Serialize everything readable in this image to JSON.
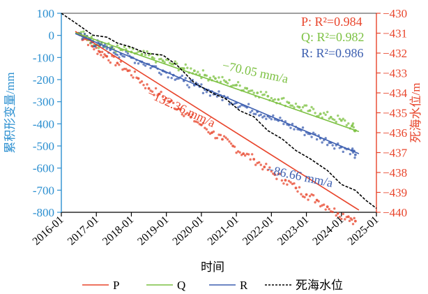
{
  "chart_data": {
    "type": "line",
    "xlabel": "时间",
    "ylabel_left": "累积形变量/mm",
    "ylabel_right": "死海水位/m",
    "ylim_left": [
      -800,
      100
    ],
    "yticks_left": [
      100,
      0,
      -100,
      -200,
      -300,
      -400,
      -500,
      -600,
      -700,
      -800
    ],
    "ylim_right": [
      -440,
      -430
    ],
    "yticks_right": [
      -430,
      -431,
      -432,
      -433,
      -434,
      -435,
      -436,
      -437,
      -438,
      -439,
      -440
    ],
    "xlim": [
      2016.0,
      2025.0
    ],
    "xticks": [
      {
        "value": 2016.0,
        "label": "2016-01"
      },
      {
        "value": 2017.0,
        "label": "2017-01"
      },
      {
        "value": 2018.0,
        "label": "2018-01"
      },
      {
        "value": 2019.0,
        "label": "2019-01"
      },
      {
        "value": 2020.0,
        "label": "2020-01"
      },
      {
        "value": 2021.0,
        "label": "2021-01"
      },
      {
        "value": 2022.0,
        "label": "2022-01"
      },
      {
        "value": 2023.0,
        "label": "2023-01"
      },
      {
        "value": 2024.0,
        "label": "2024-01"
      },
      {
        "value": 2025.0,
        "label": "2025-01"
      }
    ],
    "series": [
      {
        "name": "P",
        "axis": "left",
        "color": "#e8452c",
        "slope": -132.36,
        "fit": [
          [
            2016.4,
            18
          ],
          [
            2024.5,
            -790
          ]
        ],
        "scatter": [
          [
            2016.5,
            5
          ],
          [
            2016.7,
            -15
          ],
          [
            2016.9,
            -50
          ],
          [
            2017.1,
            -75
          ],
          [
            2017.3,
            -95
          ],
          [
            2017.6,
            -125
          ],
          [
            2017.9,
            -160
          ],
          [
            2018.2,
            -195
          ],
          [
            2018.5,
            -240
          ],
          [
            2018.8,
            -265
          ],
          [
            2019.1,
            -300
          ],
          [
            2019.4,
            -335
          ],
          [
            2019.7,
            -370
          ],
          [
            2020.0,
            -405
          ],
          [
            2020.3,
            -440
          ],
          [
            2020.6,
            -470
          ],
          [
            2020.9,
            -500
          ],
          [
            2021.2,
            -535
          ],
          [
            2021.5,
            -560
          ],
          [
            2021.8,
            -595
          ],
          [
            2022.1,
            -630
          ],
          [
            2022.4,
            -655
          ],
          [
            2022.7,
            -690
          ],
          [
            2023.0,
            -720
          ],
          [
            2023.3,
            -745
          ],
          [
            2023.6,
            -775
          ],
          [
            2023.9,
            -805
          ],
          [
            2024.2,
            -820
          ],
          [
            2024.4,
            -840
          ]
        ]
      },
      {
        "name": "Q",
        "axis": "left",
        "color": "#7cc142",
        "slope": -70.05,
        "fit": [
          [
            2016.4,
            12
          ],
          [
            2024.5,
            -435
          ]
        ],
        "scatter": [
          [
            2016.5,
            10
          ],
          [
            2016.7,
            -5
          ],
          [
            2016.9,
            -25
          ],
          [
            2017.1,
            -40
          ],
          [
            2017.4,
            -55
          ],
          [
            2017.7,
            -65
          ],
          [
            2018.0,
            -75
          ],
          [
            2018.3,
            -85
          ],
          [
            2018.6,
            -100
          ],
          [
            2018.9,
            -115
          ],
          [
            2019.2,
            -130
          ],
          [
            2019.5,
            -150
          ],
          [
            2019.8,
            -160
          ],
          [
            2020.1,
            -180
          ],
          [
            2020.4,
            -195
          ],
          [
            2020.7,
            -210
          ],
          [
            2021.0,
            -225
          ],
          [
            2021.3,
            -240
          ],
          [
            2021.6,
            -260
          ],
          [
            2021.9,
            -275
          ],
          [
            2022.2,
            -290
          ],
          [
            2022.5,
            -305
          ],
          [
            2022.8,
            -325
          ],
          [
            2023.1,
            -340
          ],
          [
            2023.4,
            -355
          ],
          [
            2023.7,
            -370
          ],
          [
            2024.0,
            -385
          ],
          [
            2024.3,
            -410
          ],
          [
            2024.4,
            -430
          ]
        ]
      },
      {
        "name": "R",
        "axis": "left",
        "color": "#3d5fb0",
        "slope": -86.66,
        "fit": [
          [
            2016.4,
            8
          ],
          [
            2024.5,
            -535
          ]
        ],
        "scatter": [
          [
            2016.5,
            8
          ],
          [
            2016.7,
            -10
          ],
          [
            2016.9,
            -30
          ],
          [
            2017.1,
            -45
          ],
          [
            2017.4,
            -65
          ],
          [
            2017.7,
            -85
          ],
          [
            2018.0,
            -100
          ],
          [
            2018.3,
            -120
          ],
          [
            2018.6,
            -140
          ],
          [
            2018.9,
            -160
          ],
          [
            2019.2,
            -180
          ],
          [
            2019.5,
            -205
          ],
          [
            2019.8,
            -225
          ],
          [
            2020.1,
            -245
          ],
          [
            2020.4,
            -265
          ],
          [
            2020.7,
            -285
          ],
          [
            2021.0,
            -305
          ],
          [
            2021.3,
            -325
          ],
          [
            2021.6,
            -345
          ],
          [
            2021.9,
            -365
          ],
          [
            2022.2,
            -385
          ],
          [
            2022.5,
            -405
          ],
          [
            2022.8,
            -425
          ],
          [
            2023.1,
            -445
          ],
          [
            2023.4,
            -465
          ],
          [
            2023.7,
            -485
          ],
          [
            2024.0,
            -505
          ],
          [
            2024.3,
            -520
          ],
          [
            2024.4,
            -540
          ]
        ]
      },
      {
        "name": "死海水位",
        "axis": "right",
        "color": "#000000",
        "dashed": true,
        "values": [
          [
            2016.0,
            -430.0
          ],
          [
            2016.5,
            -430.6
          ],
          [
            2016.9,
            -431.1
          ],
          [
            2017.3,
            -431.2
          ],
          [
            2017.6,
            -431.5
          ],
          [
            2018.0,
            -431.7
          ],
          [
            2018.4,
            -432.0
          ],
          [
            2018.9,
            -432.1
          ],
          [
            2019.3,
            -432.6
          ],
          [
            2019.8,
            -433.5
          ],
          [
            2020.3,
            -434.0
          ],
          [
            2020.7,
            -434.3
          ],
          [
            2021.1,
            -434.9
          ],
          [
            2021.5,
            -435.2
          ],
          [
            2021.9,
            -435.9
          ],
          [
            2022.3,
            -436.3
          ],
          [
            2022.7,
            -436.9
          ],
          [
            2023.1,
            -437.3
          ],
          [
            2023.6,
            -437.9
          ],
          [
            2024.0,
            -438.6
          ],
          [
            2024.4,
            -438.9
          ],
          [
            2024.7,
            -439.4
          ],
          [
            2025.0,
            -439.8
          ]
        ]
      }
    ],
    "annotations": [
      {
        "id": "p-r2",
        "text": "P: R²=0.984",
        "color": "#e8452c"
      },
      {
        "id": "q-r2",
        "text": "Q: R²=0.982",
        "color": "#7cc142"
      },
      {
        "id": "r-r2",
        "text": "R: R²=0.986",
        "color": "#3d5fb0"
      },
      {
        "id": "q-rate",
        "text": "−70.05 mm/a",
        "color": "#7cc142"
      },
      {
        "id": "p-rate",
        "text": "−132.36 mm/a",
        "color": "#e8452c"
      },
      {
        "id": "r-rate",
        "text": "−86.66 mm/a",
        "color": "#3d5fb0"
      }
    ],
    "legend": {
      "placement": "bottom",
      "entries": [
        {
          "label": "P",
          "color": "#e8452c",
          "dashed": false
        },
        {
          "label": "Q",
          "color": "#7cc142",
          "dashed": false
        },
        {
          "label": "R",
          "color": "#3d5fb0",
          "dashed": false
        },
        {
          "label": "死海水位",
          "color": "#000000",
          "dashed": true
        }
      ]
    },
    "axis_colors": {
      "left": "#2b8fd0",
      "right": "#e8452c"
    },
    "grid": false
  }
}
